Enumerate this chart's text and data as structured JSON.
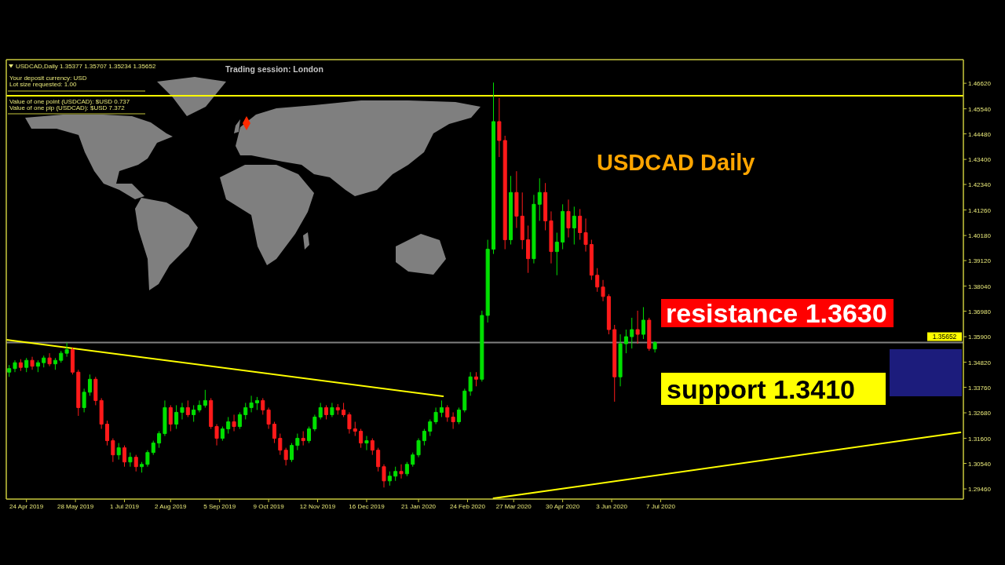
{
  "chart_data": {
    "type": "candlestick",
    "title": "USDCAD Daily",
    "x": [
      "2019-04-12",
      "2019-04-16",
      "2019-04-20",
      "2019-04-24",
      "2019-04-28",
      "2019-05-02",
      "2019-05-06",
      "2019-05-10",
      "2019-05-14",
      "2019-05-18",
      "2019-05-22",
      "2019-05-26",
      "2019-05-30",
      "2019-06-03",
      "2019-06-07",
      "2019-06-11",
      "2019-06-15",
      "2019-06-19",
      "2019-06-23",
      "2019-06-27",
      "2019-07-01",
      "2019-07-05",
      "2019-07-09",
      "2019-07-13",
      "2019-07-17",
      "2019-07-21",
      "2019-07-25",
      "2019-07-29",
      "2019-08-02",
      "2019-08-06",
      "2019-08-10",
      "2019-08-14",
      "2019-08-18",
      "2019-08-22",
      "2019-08-26",
      "2019-08-30",
      "2019-09-03",
      "2019-09-07",
      "2019-09-11",
      "2019-09-15",
      "2019-09-19",
      "2019-09-23",
      "2019-09-27",
      "2019-10-01",
      "2019-10-05",
      "2019-10-09",
      "2019-10-13",
      "2019-10-17",
      "2019-10-21",
      "2019-10-25",
      "2019-10-29",
      "2019-11-02",
      "2019-11-06",
      "2019-11-10",
      "2019-11-14",
      "2019-11-18",
      "2019-11-22",
      "2019-11-26",
      "2019-11-30",
      "2019-12-04",
      "2019-12-08",
      "2019-12-12",
      "2019-12-16",
      "2019-12-20",
      "2019-12-24",
      "2019-12-28",
      "2020-01-01",
      "2020-01-05",
      "2020-01-09",
      "2020-01-13",
      "2020-01-17",
      "2020-01-21",
      "2020-01-25",
      "2020-01-29",
      "2020-02-02",
      "2020-02-06",
      "2020-02-10",
      "2020-02-14",
      "2020-02-18",
      "2020-02-22",
      "2020-02-26",
      "2020-03-01",
      "2020-03-05",
      "2020-03-09",
      "2020-03-13",
      "2020-03-17",
      "2020-03-21",
      "2020-03-25",
      "2020-03-29",
      "2020-04-02",
      "2020-04-06",
      "2020-04-10",
      "2020-04-14",
      "2020-04-18",
      "2020-04-22",
      "2020-04-26",
      "2020-04-30",
      "2020-05-04",
      "2020-05-08",
      "2020-05-12",
      "2020-05-16",
      "2020-05-20",
      "2020-05-24",
      "2020-05-28",
      "2020-06-01",
      "2020-06-05",
      "2020-06-09",
      "2020-06-13",
      "2020-06-17",
      "2020-06-21",
      "2020-06-25",
      "2020-06-29",
      "2020-07-03"
    ],
    "ohlc": [
      [
        1.344,
        1.347,
        1.342,
        1.3455
      ],
      [
        1.3455,
        1.349,
        1.344,
        1.348
      ],
      [
        1.348,
        1.3495,
        1.3445,
        1.346
      ],
      [
        1.346,
        1.35,
        1.344,
        1.349
      ],
      [
        1.349,
        1.3505,
        1.345,
        1.3465
      ],
      [
        1.3465,
        1.349,
        1.344,
        1.348
      ],
      [
        1.348,
        1.351,
        1.346,
        1.35
      ],
      [
        1.35,
        1.352,
        1.3465,
        1.3475
      ],
      [
        1.3475,
        1.35,
        1.345,
        1.349
      ],
      [
        1.349,
        1.353,
        1.348,
        1.352
      ],
      [
        1.352,
        1.3565,
        1.3505,
        1.3535
      ],
      [
        1.3535,
        1.3545,
        1.343,
        1.344
      ],
      [
        1.344,
        1.345,
        1.3255,
        1.329
      ],
      [
        1.329,
        1.337,
        1.327,
        1.3355
      ],
      [
        1.3355,
        1.343,
        1.334,
        1.341
      ],
      [
        1.341,
        1.342,
        1.33,
        1.332
      ],
      [
        1.332,
        1.333,
        1.32,
        1.322
      ],
      [
        1.322,
        1.3235,
        1.313,
        1.315
      ],
      [
        1.315,
        1.316,
        1.306,
        1.309
      ],
      [
        1.309,
        1.314,
        1.307,
        1.312
      ],
      [
        1.312,
        1.313,
        1.304,
        1.306
      ],
      [
        1.306,
        1.31,
        1.304,
        1.308
      ],
      [
        1.308,
        1.309,
        1.302,
        1.304
      ],
      [
        1.304,
        1.306,
        1.3015,
        1.305
      ],
      [
        1.305,
        1.311,
        1.304,
        1.31
      ],
      [
        1.31,
        1.315,
        1.309,
        1.314
      ],
      [
        1.314,
        1.319,
        1.312,
        1.318
      ],
      [
        1.318,
        1.332,
        1.317,
        1.329
      ],
      [
        1.329,
        1.33,
        1.319,
        1.322
      ],
      [
        1.322,
        1.33,
        1.32,
        1.327
      ],
      [
        1.327,
        1.331,
        1.324,
        1.329
      ],
      [
        1.329,
        1.332,
        1.325,
        1.326
      ],
      [
        1.326,
        1.33,
        1.323,
        1.328
      ],
      [
        1.328,
        1.332,
        1.327,
        1.33
      ],
      [
        1.33,
        1.3365,
        1.329,
        1.332
      ],
      [
        1.332,
        1.333,
        1.32,
        1.321
      ],
      [
        1.321,
        1.322,
        1.313,
        1.316
      ],
      [
        1.316,
        1.321,
        1.315,
        1.32
      ],
      [
        1.32,
        1.325,
        1.318,
        1.323
      ],
      [
        1.323,
        1.326,
        1.319,
        1.321
      ],
      [
        1.321,
        1.327,
        1.32,
        1.326
      ],
      [
        1.326,
        1.331,
        1.324,
        1.329
      ],
      [
        1.329,
        1.334,
        1.327,
        1.331
      ],
      [
        1.331,
        1.3335,
        1.328,
        1.332
      ],
      [
        1.332,
        1.333,
        1.326,
        1.328
      ],
      [
        1.328,
        1.329,
        1.32,
        1.322
      ],
      [
        1.322,
        1.323,
        1.314,
        1.316
      ],
      [
        1.316,
        1.318,
        1.309,
        1.311
      ],
      [
        1.311,
        1.312,
        1.3045,
        1.307
      ],
      [
        1.307,
        1.314,
        1.306,
        1.313
      ],
      [
        1.313,
        1.318,
        1.311,
        1.316
      ],
      [
        1.316,
        1.319,
        1.313,
        1.315
      ],
      [
        1.315,
        1.321,
        1.314,
        1.32
      ],
      [
        1.32,
        1.326,
        1.319,
        1.325
      ],
      [
        1.325,
        1.331,
        1.324,
        1.329
      ],
      [
        1.329,
        1.33,
        1.324,
        1.326
      ],
      [
        1.326,
        1.331,
        1.325,
        1.329
      ],
      [
        1.329,
        1.3305,
        1.326,
        1.328
      ],
      [
        1.328,
        1.331,
        1.325,
        1.326
      ],
      [
        1.326,
        1.327,
        1.318,
        1.32
      ],
      [
        1.32,
        1.323,
        1.317,
        1.319
      ],
      [
        1.319,
        1.32,
        1.312,
        1.314
      ],
      [
        1.314,
        1.317,
        1.311,
        1.315
      ],
      [
        1.315,
        1.316,
        1.309,
        1.311
      ],
      [
        1.311,
        1.312,
        1.302,
        1.304
      ],
      [
        1.304,
        1.305,
        1.2952,
        1.298
      ],
      [
        1.298,
        1.302,
        1.296,
        1.3
      ],
      [
        1.3,
        1.304,
        1.298,
        1.302
      ],
      [
        1.302,
        1.305,
        1.299,
        1.301
      ],
      [
        1.301,
        1.306,
        1.3,
        1.305
      ],
      [
        1.305,
        1.31,
        1.304,
        1.309
      ],
      [
        1.309,
        1.316,
        1.308,
        1.315
      ],
      [
        1.315,
        1.32,
        1.313,
        1.319
      ],
      [
        1.319,
        1.324,
        1.317,
        1.323
      ],
      [
        1.323,
        1.329,
        1.322,
        1.327
      ],
      [
        1.327,
        1.332,
        1.325,
        1.329
      ],
      [
        1.329,
        1.33,
        1.323,
        1.325
      ],
      [
        1.325,
        1.327,
        1.32,
        1.323
      ],
      [
        1.323,
        1.329,
        1.322,
        1.328
      ],
      [
        1.328,
        1.337,
        1.327,
        1.336
      ],
      [
        1.336,
        1.344,
        1.334,
        1.342
      ],
      [
        1.342,
        1.344,
        1.338,
        1.341
      ],
      [
        1.341,
        1.37,
        1.34,
        1.368
      ],
      [
        1.368,
        1.4,
        1.365,
        1.396
      ],
      [
        1.396,
        1.4665,
        1.394,
        1.45
      ],
      [
        1.45,
        1.46,
        1.435,
        1.442
      ],
      [
        1.442,
        1.444,
        1.396,
        1.4
      ],
      [
        1.4,
        1.427,
        1.398,
        1.42
      ],
      [
        1.42,
        1.429,
        1.405,
        1.41
      ],
      [
        1.41,
        1.42,
        1.396,
        1.4
      ],
      [
        1.4,
        1.406,
        1.386,
        1.392
      ],
      [
        1.392,
        1.419,
        1.39,
        1.415
      ],
      [
        1.415,
        1.426,
        1.408,
        1.42
      ],
      [
        1.42,
        1.424,
        1.404,
        1.408
      ],
      [
        1.408,
        1.412,
        1.39,
        1.395
      ],
      [
        1.395,
        1.403,
        1.385,
        1.399
      ],
      [
        1.399,
        1.415,
        1.396,
        1.412
      ],
      [
        1.412,
        1.417,
        1.401,
        1.405
      ],
      [
        1.405,
        1.414,
        1.398,
        1.41
      ],
      [
        1.41,
        1.413,
        1.4,
        1.403
      ],
      [
        1.403,
        1.409,
        1.395,
        1.398
      ],
      [
        1.398,
        1.4,
        1.383,
        1.385
      ],
      [
        1.385,
        1.388,
        1.378,
        1.38
      ],
      [
        1.38,
        1.383,
        1.374,
        1.376
      ],
      [
        1.376,
        1.377,
        1.36,
        1.362
      ],
      [
        1.362,
        1.364,
        1.3315,
        1.342
      ],
      [
        1.342,
        1.36,
        1.338,
        1.356
      ],
      [
        1.356,
        1.362,
        1.352,
        1.359
      ],
      [
        1.359,
        1.367,
        1.354,
        1.362
      ],
      [
        1.362,
        1.37,
        1.356,
        1.36
      ],
      [
        1.36,
        1.3715,
        1.358,
        1.366
      ],
      [
        1.366,
        1.367,
        1.353,
        1.354
      ],
      [
        1.3538,
        1.3571,
        1.3523,
        1.3565
      ]
    ],
    "series": [
      {
        "type": "line",
        "x": [
          "2019-04-10",
          "2020-02-07"
        ],
        "values": [
          1.3577,
          1.3338
        ],
        "color": "#ffff00"
      },
      {
        "type": "line",
        "x": [
          "2020-03-13",
          "2021-01-31"
        ],
        "values": [
          1.2906,
          1.3185
        ],
        "color": "#ffff00"
      }
    ],
    "xlim": [
      "2019-04-10",
      "2021-02-02"
    ],
    "ylim": [
      1.2903,
      1.4762
    ],
    "xticks": [
      {
        "value": "2019-04-24",
        "label": "24 Apr 2019"
      },
      {
        "value": "2019-05-28",
        "label": "28 May 2019"
      },
      {
        "value": "2019-07-01",
        "label": "1 Jul 2019"
      },
      {
        "value": "2019-08-02",
        "label": "2 Aug 2019"
      },
      {
        "value": "2019-09-05",
        "label": "5 Sep 2019"
      },
      {
        "value": "2019-10-09",
        "label": "9 Oct 2019"
      },
      {
        "value": "2019-11-12",
        "label": "12 Nov 2019"
      },
      {
        "value": "2019-12-16",
        "label": "16 Dec 2019"
      },
      {
        "value": "2020-01-21",
        "label": "21 Jan 2020"
      },
      {
        "value": "2020-02-24",
        "label": "24 Feb 2020"
      },
      {
        "value": "2020-03-27",
        "label": "27 Mar 2020"
      },
      {
        "value": "2020-04-30",
        "label": "30 Apr 2020"
      },
      {
        "value": "2020-06-03",
        "label": "3 Jun 2020"
      },
      {
        "value": "2020-07-07",
        "label": "7 Jul 2020"
      }
    ],
    "yticks": [
      {
        "value": 1.2946,
        "label": "1.29460"
      },
      {
        "value": 1.3054,
        "label": "1.30540"
      },
      {
        "value": 1.316,
        "label": "1.31600"
      },
      {
        "value": 1.3268,
        "label": "1.32680"
      },
      {
        "value": 1.3376,
        "label": "1.33760"
      },
      {
        "value": 1.3482,
        "label": "1.34820"
      },
      {
        "value": 1.359,
        "label": "1.35900"
      },
      {
        "value": 1.3698,
        "label": "1.36980"
      },
      {
        "value": 1.3804,
        "label": "1.38040"
      },
      {
        "value": 1.3912,
        "label": "1.39120"
      },
      {
        "value": 1.4018,
        "label": "1.40180"
      },
      {
        "value": 1.4126,
        "label": "1.41260"
      },
      {
        "value": 1.4234,
        "label": "1.42340"
      },
      {
        "value": 1.434,
        "label": "1.43400"
      },
      {
        "value": 1.4448,
        "label": "1.44480"
      },
      {
        "value": 1.4554,
        "label": "1.45540"
      },
      {
        "value": 1.4662,
        "label": "1.46620"
      }
    ],
    "ref_lines": [
      {
        "axis": "y",
        "value": 1.4609,
        "color": "#ffff00"
      },
      {
        "axis": "y",
        "value": 1.35652,
        "label": "1.35652",
        "color": "#808080"
      }
    ],
    "annotations": [
      "USDCAD,Daily 1.35377 1.35707 1.35234 1.35652",
      "Your deposit currency: USD",
      "Lot size requested: 1.00",
      "Value of one point (USDCAD): $USD 0.737",
      "Value of one pip (USDCAD): $USD 7.372",
      "Trading session: London",
      "resistance 1.3630",
      "support 1.3410"
    ]
  }
}
